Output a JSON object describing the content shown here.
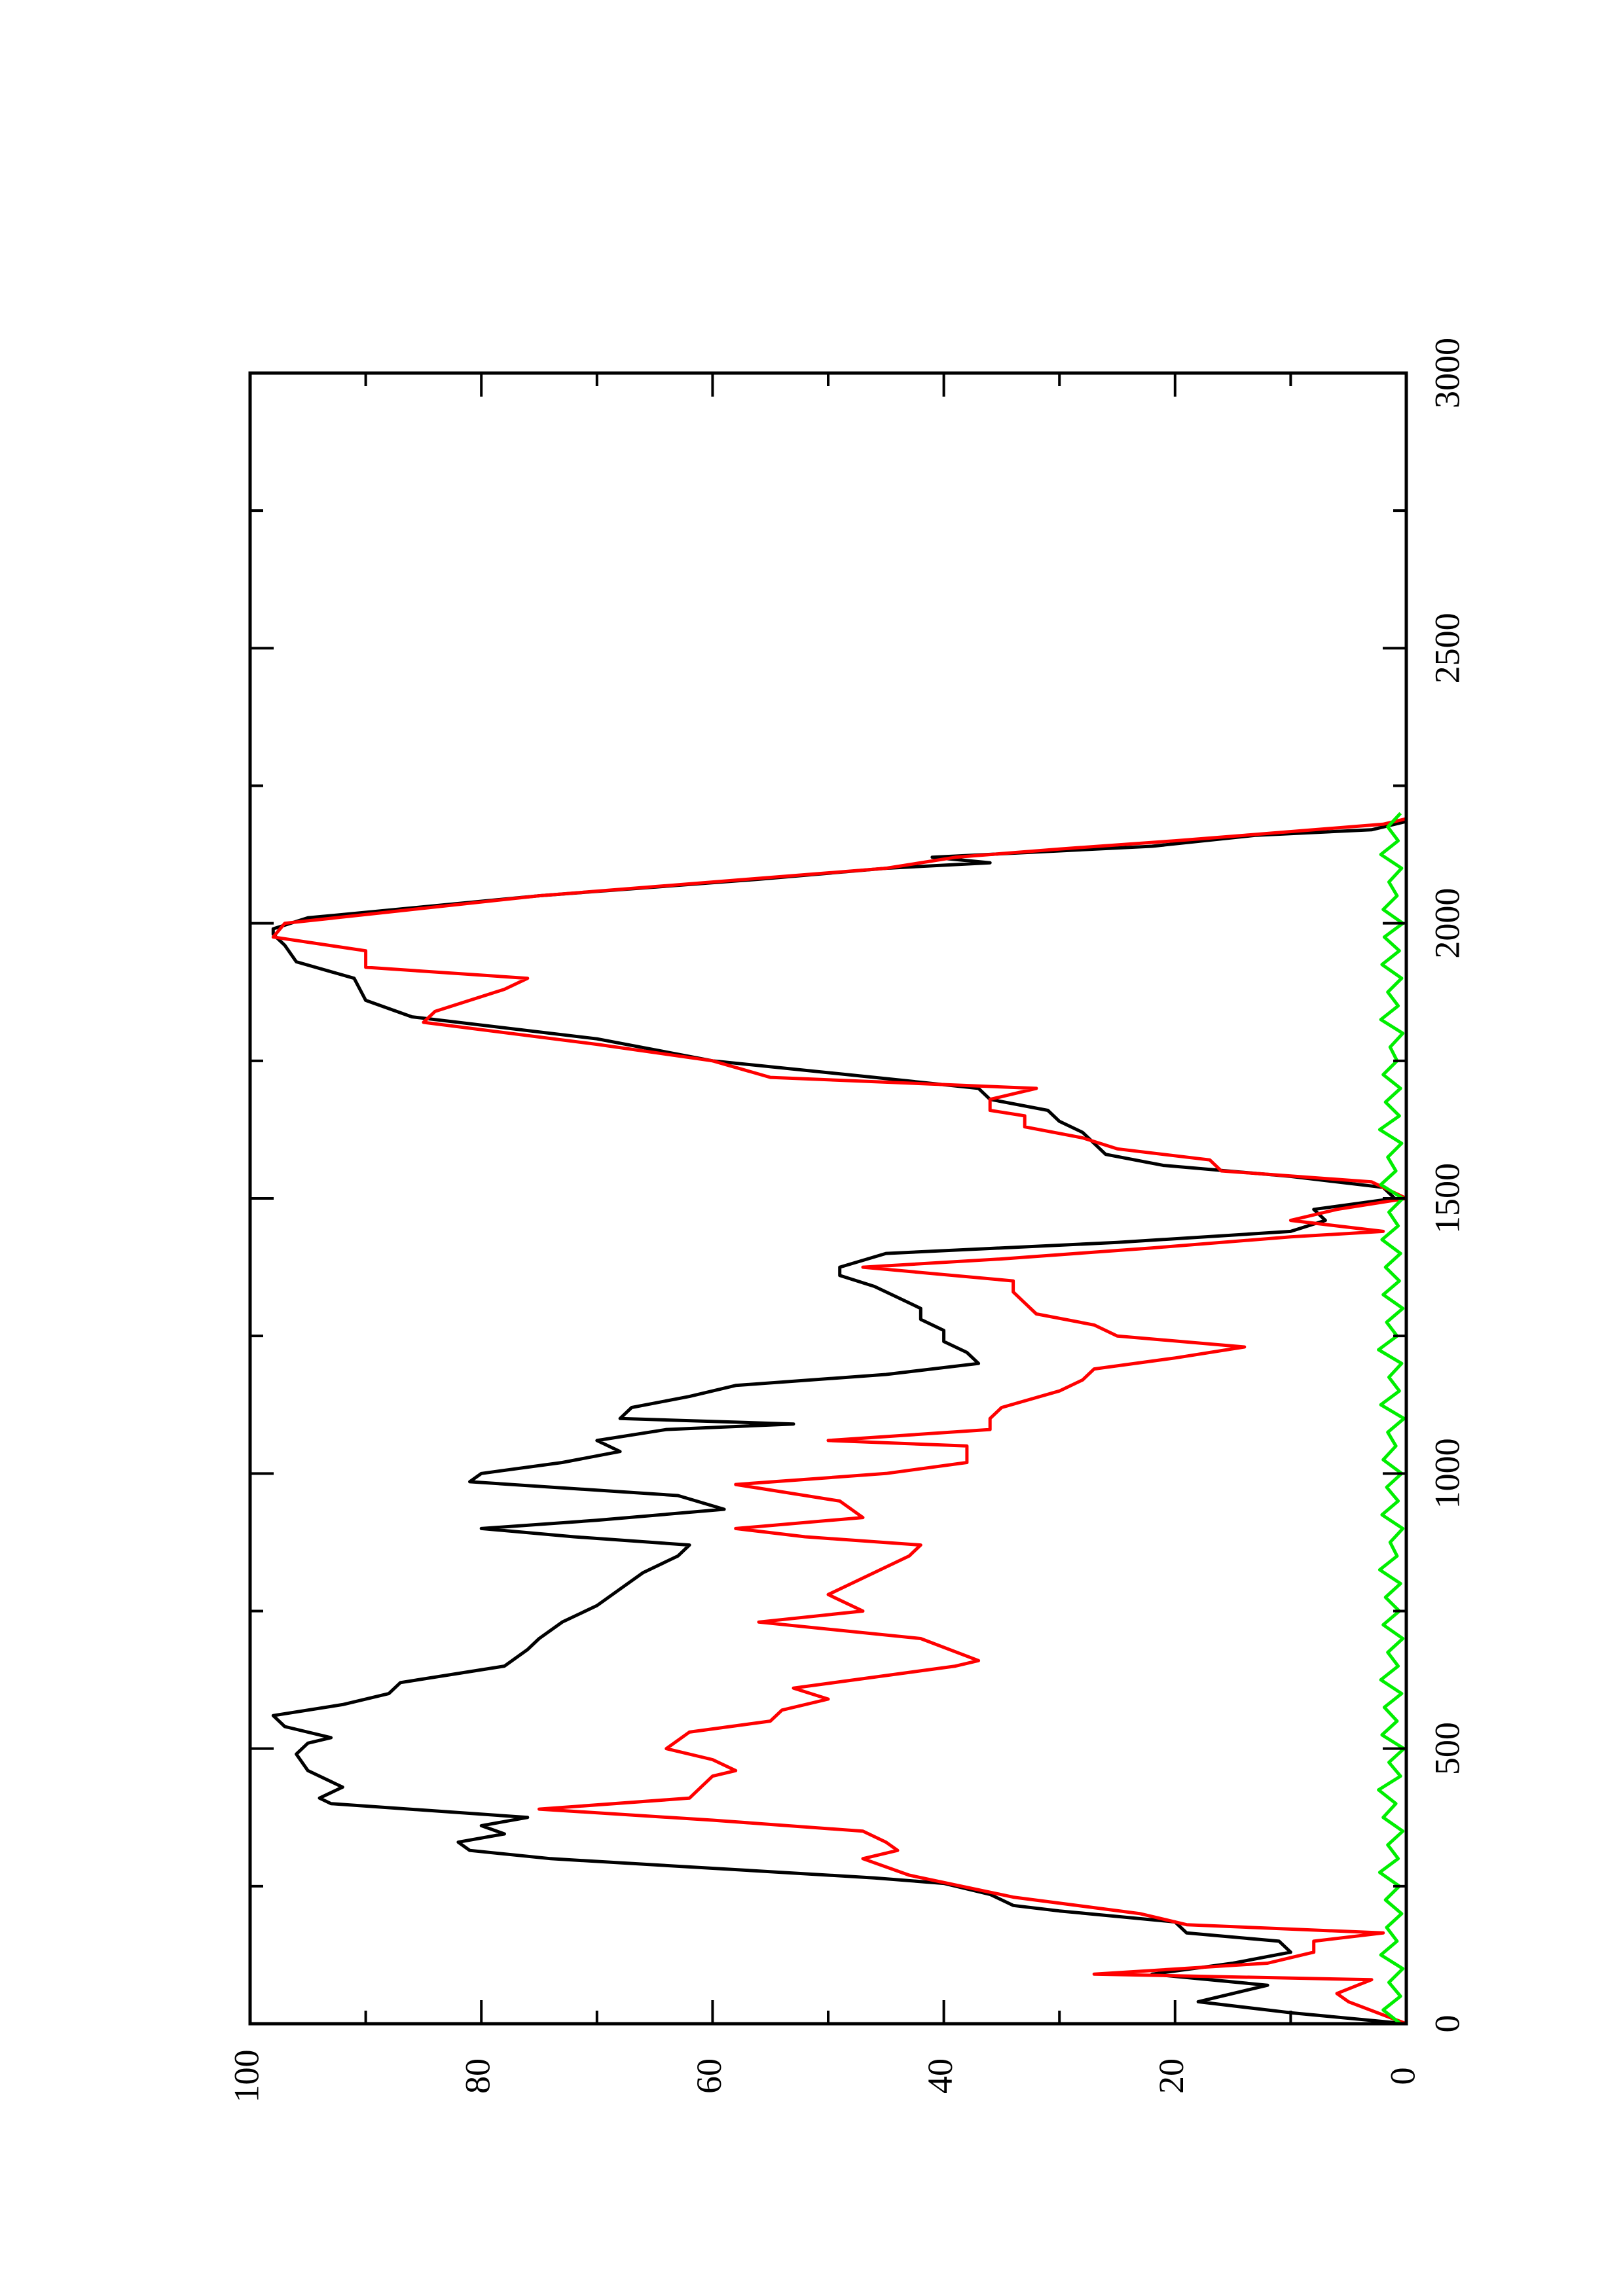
{
  "chart_data": {
    "type": "line",
    "orientation": "rotated-90-ccw",
    "xlim": [
      0,
      3000
    ],
    "ylim": [
      0,
      100
    ],
    "x_ticks_major": [
      0,
      500,
      1000,
      1500,
      2000,
      2500,
      3000
    ],
    "x_tick_labels": [
      "0",
      "500",
      "1000",
      "1500",
      "2000",
      "2500",
      "3000"
    ],
    "y_ticks_major": [
      0,
      20,
      40,
      60,
      80,
      100
    ],
    "y_tick_labels": [
      "0",
      "20",
      "40",
      "60",
      "80",
      "100"
    ],
    "grid": false,
    "series": [
      {
        "color": "#000000",
        "points": [
          [
            0,
            0
          ],
          [
            20,
            10
          ],
          [
            40,
            18
          ],
          [
            55,
            15
          ],
          [
            70,
            12
          ],
          [
            90,
            22
          ],
          [
            110,
            15
          ],
          [
            130,
            10
          ],
          [
            150,
            11
          ],
          [
            165,
            19
          ],
          [
            185,
            20
          ],
          [
            205,
            30
          ],
          [
            215,
            34
          ],
          [
            235,
            36
          ],
          [
            255,
            40
          ],
          [
            265,
            46
          ],
          [
            300,
            74
          ],
          [
            315,
            81
          ],
          [
            330,
            82
          ],
          [
            345,
            78
          ],
          [
            360,
            80
          ],
          [
            375,
            76
          ],
          [
            400,
            93
          ],
          [
            410,
            94
          ],
          [
            430,
            92
          ],
          [
            460,
            95
          ],
          [
            490,
            96
          ],
          [
            510,
            95
          ],
          [
            520,
            93
          ],
          [
            540,
            97
          ],
          [
            560,
            98
          ],
          [
            580,
            92
          ],
          [
            600,
            88
          ],
          [
            620,
            87
          ],
          [
            650,
            78
          ],
          [
            680,
            76
          ],
          [
            700,
            75
          ],
          [
            730,
            73
          ],
          [
            760,
            70
          ],
          [
            790,
            68
          ],
          [
            820,
            66
          ],
          [
            850,
            63
          ],
          [
            870,
            62
          ],
          [
            885,
            72
          ],
          [
            900,
            80
          ],
          [
            915,
            70
          ],
          [
            935,
            59
          ],
          [
            960,
            63
          ],
          [
            985,
            81
          ],
          [
            1000,
            80
          ],
          [
            1020,
            73
          ],
          [
            1040,
            68
          ],
          [
            1060,
            70
          ],
          [
            1080,
            64
          ],
          [
            1090,
            53
          ],
          [
            1100,
            68
          ],
          [
            1120,
            67
          ],
          [
            1140,
            62
          ],
          [
            1160,
            58
          ],
          [
            1180,
            45
          ],
          [
            1200,
            37
          ],
          [
            1220,
            38
          ],
          [
            1240,
            40
          ],
          [
            1260,
            40
          ],
          [
            1280,
            42
          ],
          [
            1300,
            42
          ],
          [
            1320,
            44
          ],
          [
            1340,
            46
          ],
          [
            1360,
            49
          ],
          [
            1375,
            49
          ],
          [
            1400,
            45
          ],
          [
            1420,
            25
          ],
          [
            1440,
            10
          ],
          [
            1460,
            7
          ],
          [
            1480,
            8
          ],
          [
            1500,
            1
          ],
          [
            1520,
            2
          ],
          [
            1540,
            10
          ],
          [
            1560,
            21
          ],
          [
            1580,
            26
          ],
          [
            1600,
            27
          ],
          [
            1620,
            28
          ],
          [
            1640,
            30
          ],
          [
            1660,
            31
          ],
          [
            1680,
            36
          ],
          [
            1700,
            37
          ],
          [
            1720,
            46
          ],
          [
            1750,
            60
          ],
          [
            1790,
            70
          ],
          [
            1830,
            86
          ],
          [
            1860,
            90
          ],
          [
            1900,
            91
          ],
          [
            1930,
            96
          ],
          [
            1960,
            97
          ],
          [
            1980,
            98
          ],
          [
            1990,
            98
          ],
          [
            2010,
            95
          ],
          [
            2050,
            75
          ],
          [
            2080,
            56
          ],
          [
            2100,
            45
          ],
          [
            2110,
            36
          ],
          [
            2120,
            41
          ],
          [
            2140,
            22
          ],
          [
            2160,
            13
          ],
          [
            2170,
            3
          ],
          [
            2185,
            0
          ]
        ]
      },
      {
        "color": "#ff0000",
        "points": [
          [
            0,
            0
          ],
          [
            40,
            5
          ],
          [
            55,
            6
          ],
          [
            80,
            3
          ],
          [
            90,
            27
          ],
          [
            110,
            12
          ],
          [
            120,
            10
          ],
          [
            130,
            8
          ],
          [
            150,
            8
          ],
          [
            165,
            2
          ],
          [
            180,
            19
          ],
          [
            200,
            23
          ],
          [
            230,
            34
          ],
          [
            270,
            43
          ],
          [
            300,
            47
          ],
          [
            315,
            44
          ],
          [
            330,
            45
          ],
          [
            350,
            47
          ],
          [
            370,
            60
          ],
          [
            390,
            75
          ],
          [
            410,
            62
          ],
          [
            430,
            61
          ],
          [
            450,
            60
          ],
          [
            460,
            58
          ],
          [
            480,
            60
          ],
          [
            500,
            64
          ],
          [
            530,
            62
          ],
          [
            550,
            55
          ],
          [
            570,
            54
          ],
          [
            590,
            50
          ],
          [
            610,
            53
          ],
          [
            650,
            39
          ],
          [
            660,
            37
          ],
          [
            700,
            42
          ],
          [
            730,
            56
          ],
          [
            750,
            47
          ],
          [
            780,
            50
          ],
          [
            800,
            48
          ],
          [
            850,
            43
          ],
          [
            870,
            42
          ],
          [
            885,
            52
          ],
          [
            900,
            58
          ],
          [
            920,
            47
          ],
          [
            950,
            49
          ],
          [
            980,
            58
          ],
          [
            1000,
            45
          ],
          [
            1020,
            38
          ],
          [
            1050,
            38
          ],
          [
            1060,
            50
          ],
          [
            1080,
            36
          ],
          [
            1100,
            36
          ],
          [
            1120,
            35
          ],
          [
            1150,
            30
          ],
          [
            1170,
            28
          ],
          [
            1190,
            27
          ],
          [
            1210,
            20
          ],
          [
            1230,
            14
          ],
          [
            1250,
            25
          ],
          [
            1270,
            27
          ],
          [
            1290,
            32
          ],
          [
            1310,
            33
          ],
          [
            1330,
            34
          ],
          [
            1350,
            34
          ],
          [
            1375,
            47
          ],
          [
            1390,
            35
          ],
          [
            1410,
            22
          ],
          [
            1430,
            10
          ],
          [
            1440,
            2
          ],
          [
            1460,
            10
          ],
          [
            1480,
            6
          ],
          [
            1500,
            0
          ],
          [
            1530,
            3
          ],
          [
            1550,
            16
          ],
          [
            1570,
            17
          ],
          [
            1590,
            25
          ],
          [
            1610,
            28
          ],
          [
            1630,
            33
          ],
          [
            1650,
            33
          ],
          [
            1660,
            36
          ],
          [
            1680,
            36
          ],
          [
            1700,
            32
          ],
          [
            1720,
            55
          ],
          [
            1750,
            60
          ],
          [
            1780,
            70
          ],
          [
            1820,
            85
          ],
          [
            1840,
            84
          ],
          [
            1880,
            78
          ],
          [
            1900,
            76
          ],
          [
            1920,
            90
          ],
          [
            1950,
            90
          ],
          [
            1975,
            98
          ],
          [
            2000,
            97
          ],
          [
            2050,
            75
          ],
          [
            2080,
            57
          ],
          [
            2100,
            45
          ],
          [
            2120,
            39
          ],
          [
            2135,
            30
          ],
          [
            2150,
            20
          ],
          [
            2160,
            14
          ],
          [
            2180,
            2
          ],
          [
            2190,
            0
          ]
        ]
      },
      {
        "color": "#00ee00",
        "points": [
          [
            0,
            0.5
          ],
          [
            25,
            2.0
          ],
          [
            50,
            0.5
          ],
          [
            75,
            1.5
          ],
          [
            100,
            0.3
          ],
          [
            125,
            2.2
          ],
          [
            150,
            0.8
          ],
          [
            175,
            1.7
          ],
          [
            200,
            0.4
          ],
          [
            225,
            1.8
          ],
          [
            250,
            0.6
          ],
          [
            275,
            2.3
          ],
          [
            300,
            0.7
          ],
          [
            325,
            1.6
          ],
          [
            350,
            0.3
          ],
          [
            375,
            2.0
          ],
          [
            400,
            0.9
          ],
          [
            425,
            2.4
          ],
          [
            450,
            0.5
          ],
          [
            475,
            1.5
          ],
          [
            500,
            0.2
          ],
          [
            525,
            2.1
          ],
          [
            550,
            0.8
          ],
          [
            575,
            1.9
          ],
          [
            600,
            0.4
          ],
          [
            625,
            2.2
          ],
          [
            650,
            0.7
          ],
          [
            675,
            1.6
          ],
          [
            700,
            0.3
          ],
          [
            725,
            2.0
          ],
          [
            750,
            0.6
          ],
          [
            775,
            1.8
          ],
          [
            800,
            0.5
          ],
          [
            825,
            2.3
          ],
          [
            850,
            0.8
          ],
          [
            875,
            1.4
          ],
          [
            900,
            0.3
          ],
          [
            925,
            2.1
          ],
          [
            950,
            0.7
          ],
          [
            975,
            1.7
          ],
          [
            1000,
            0.4
          ],
          [
            1025,
            2.0
          ],
          [
            1050,
            0.9
          ],
          [
            1075,
            1.6
          ],
          [
            1100,
            0.2
          ],
          [
            1125,
            2.2
          ],
          [
            1150,
            0.6
          ],
          [
            1175,
            1.5
          ],
          [
            1200,
            0.4
          ],
          [
            1225,
            2.4
          ],
          [
            1250,
            0.8
          ],
          [
            1275,
            1.7
          ],
          [
            1300,
            0.3
          ],
          [
            1325,
            2.0
          ],
          [
            1350,
            0.6
          ],
          [
            1375,
            1.8
          ],
          [
            1400,
            0.5
          ],
          [
            1425,
            2.1
          ],
          [
            1450,
            0.7
          ],
          [
            1475,
            1.5
          ],
          [
            1500,
            0.3
          ],
          [
            1525,
            2.2
          ],
          [
            1550,
            0.9
          ],
          [
            1575,
            1.6
          ],
          [
            1600,
            0.4
          ],
          [
            1625,
            2.3
          ],
          [
            1650,
            0.6
          ],
          [
            1675,
            1.8
          ],
          [
            1700,
            0.5
          ],
          [
            1725,
            2.0
          ],
          [
            1750,
            0.8
          ],
          [
            1775,
            1.4
          ],
          [
            1800,
            0.3
          ],
          [
            1825,
            2.2
          ],
          [
            1850,
            0.7
          ],
          [
            1875,
            1.6
          ],
          [
            1900,
            0.4
          ],
          [
            1925,
            2.1
          ],
          [
            1950,
            0.6
          ],
          [
            1975,
            1.9
          ],
          [
            2000,
            0.3
          ],
          [
            2025,
            2.0
          ],
          [
            2050,
            0.8
          ],
          [
            2075,
            1.5
          ],
          [
            2100,
            0.4
          ],
          [
            2125,
            2.2
          ],
          [
            2150,
            0.7
          ],
          [
            2175,
            1.6
          ],
          [
            2200,
            0.5
          ]
        ]
      }
    ]
  }
}
